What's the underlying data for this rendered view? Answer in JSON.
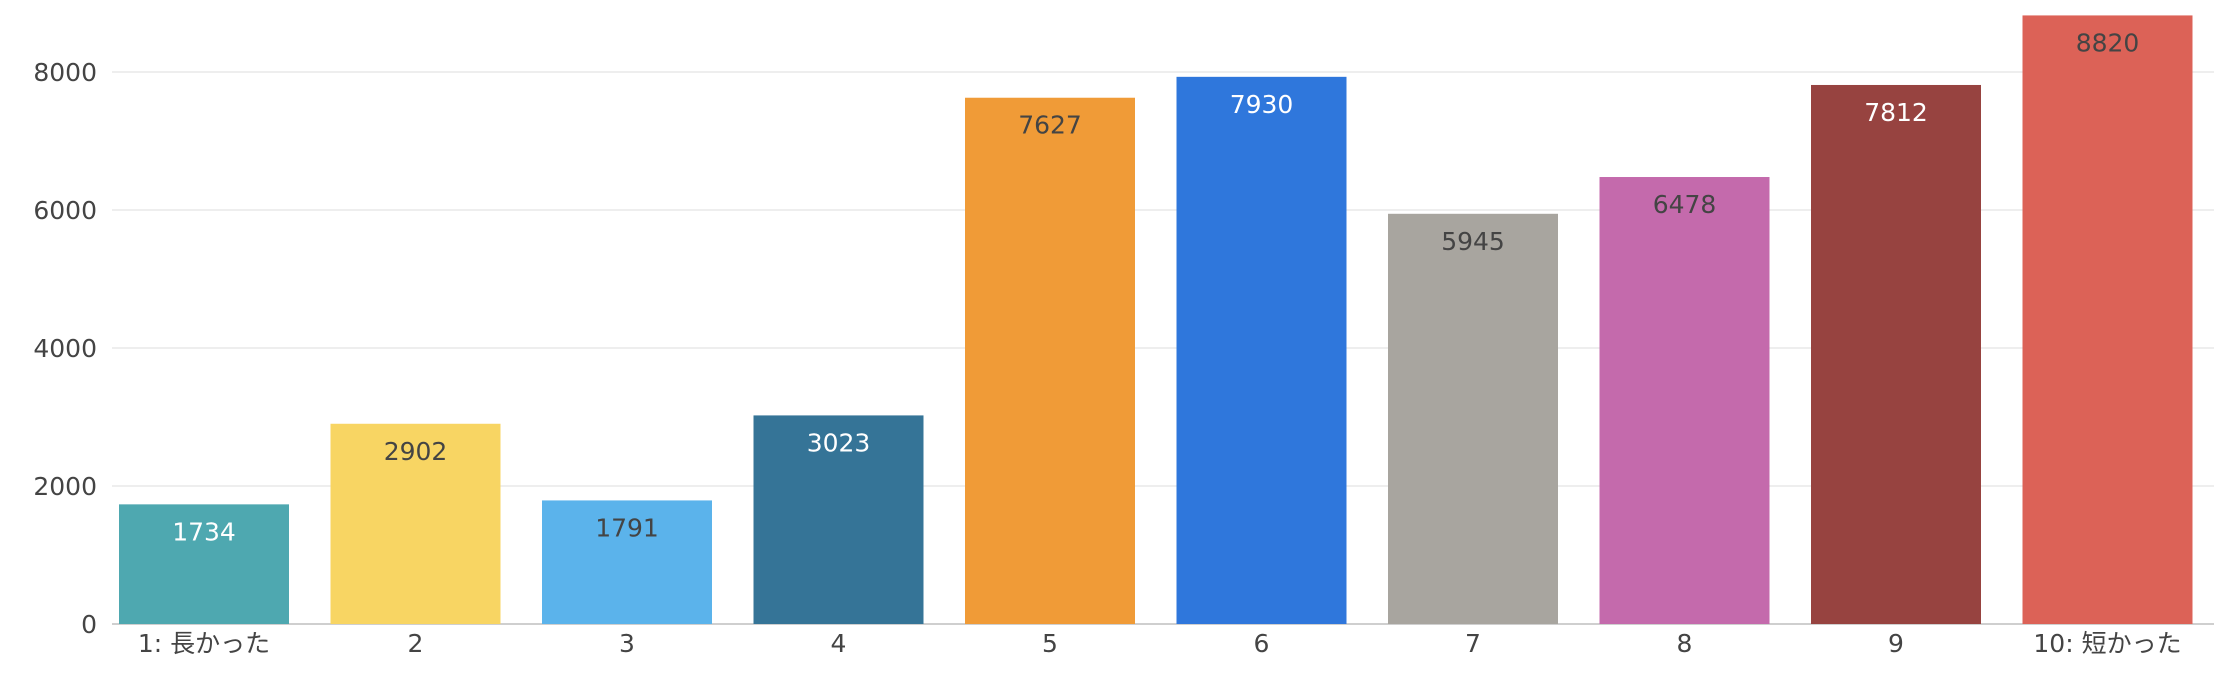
{
  "chart_data": {
    "type": "bar",
    "categories": [
      "1: 長かった",
      "2",
      "3",
      "4",
      "5",
      "6",
      "7",
      "8",
      "9",
      "10: 短かった"
    ],
    "values": [
      1734,
      2902,
      1791,
      3023,
      7627,
      7930,
      5945,
      6478,
      7812,
      8820
    ],
    "bar_colors": [
      "#4ea8b0",
      "#f8d563",
      "#5bb3eb",
      "#357497",
      "#f09b37",
      "#2f77dc",
      "#a8a59f",
      "#c46aac",
      "#974340",
      "#dc6257"
    ],
    "label_colors": [
      "#ffffff",
      "#444444",
      "#444444",
      "#ffffff",
      "#444444",
      "#ffffff",
      "#444444",
      "#444444",
      "#ffffff",
      "#444444"
    ],
    "yticks": [
      0,
      2000,
      4000,
      6000,
      8000
    ],
    "ylim": [
      0,
      8900
    ],
    "grid": true,
    "legend": "none"
  }
}
